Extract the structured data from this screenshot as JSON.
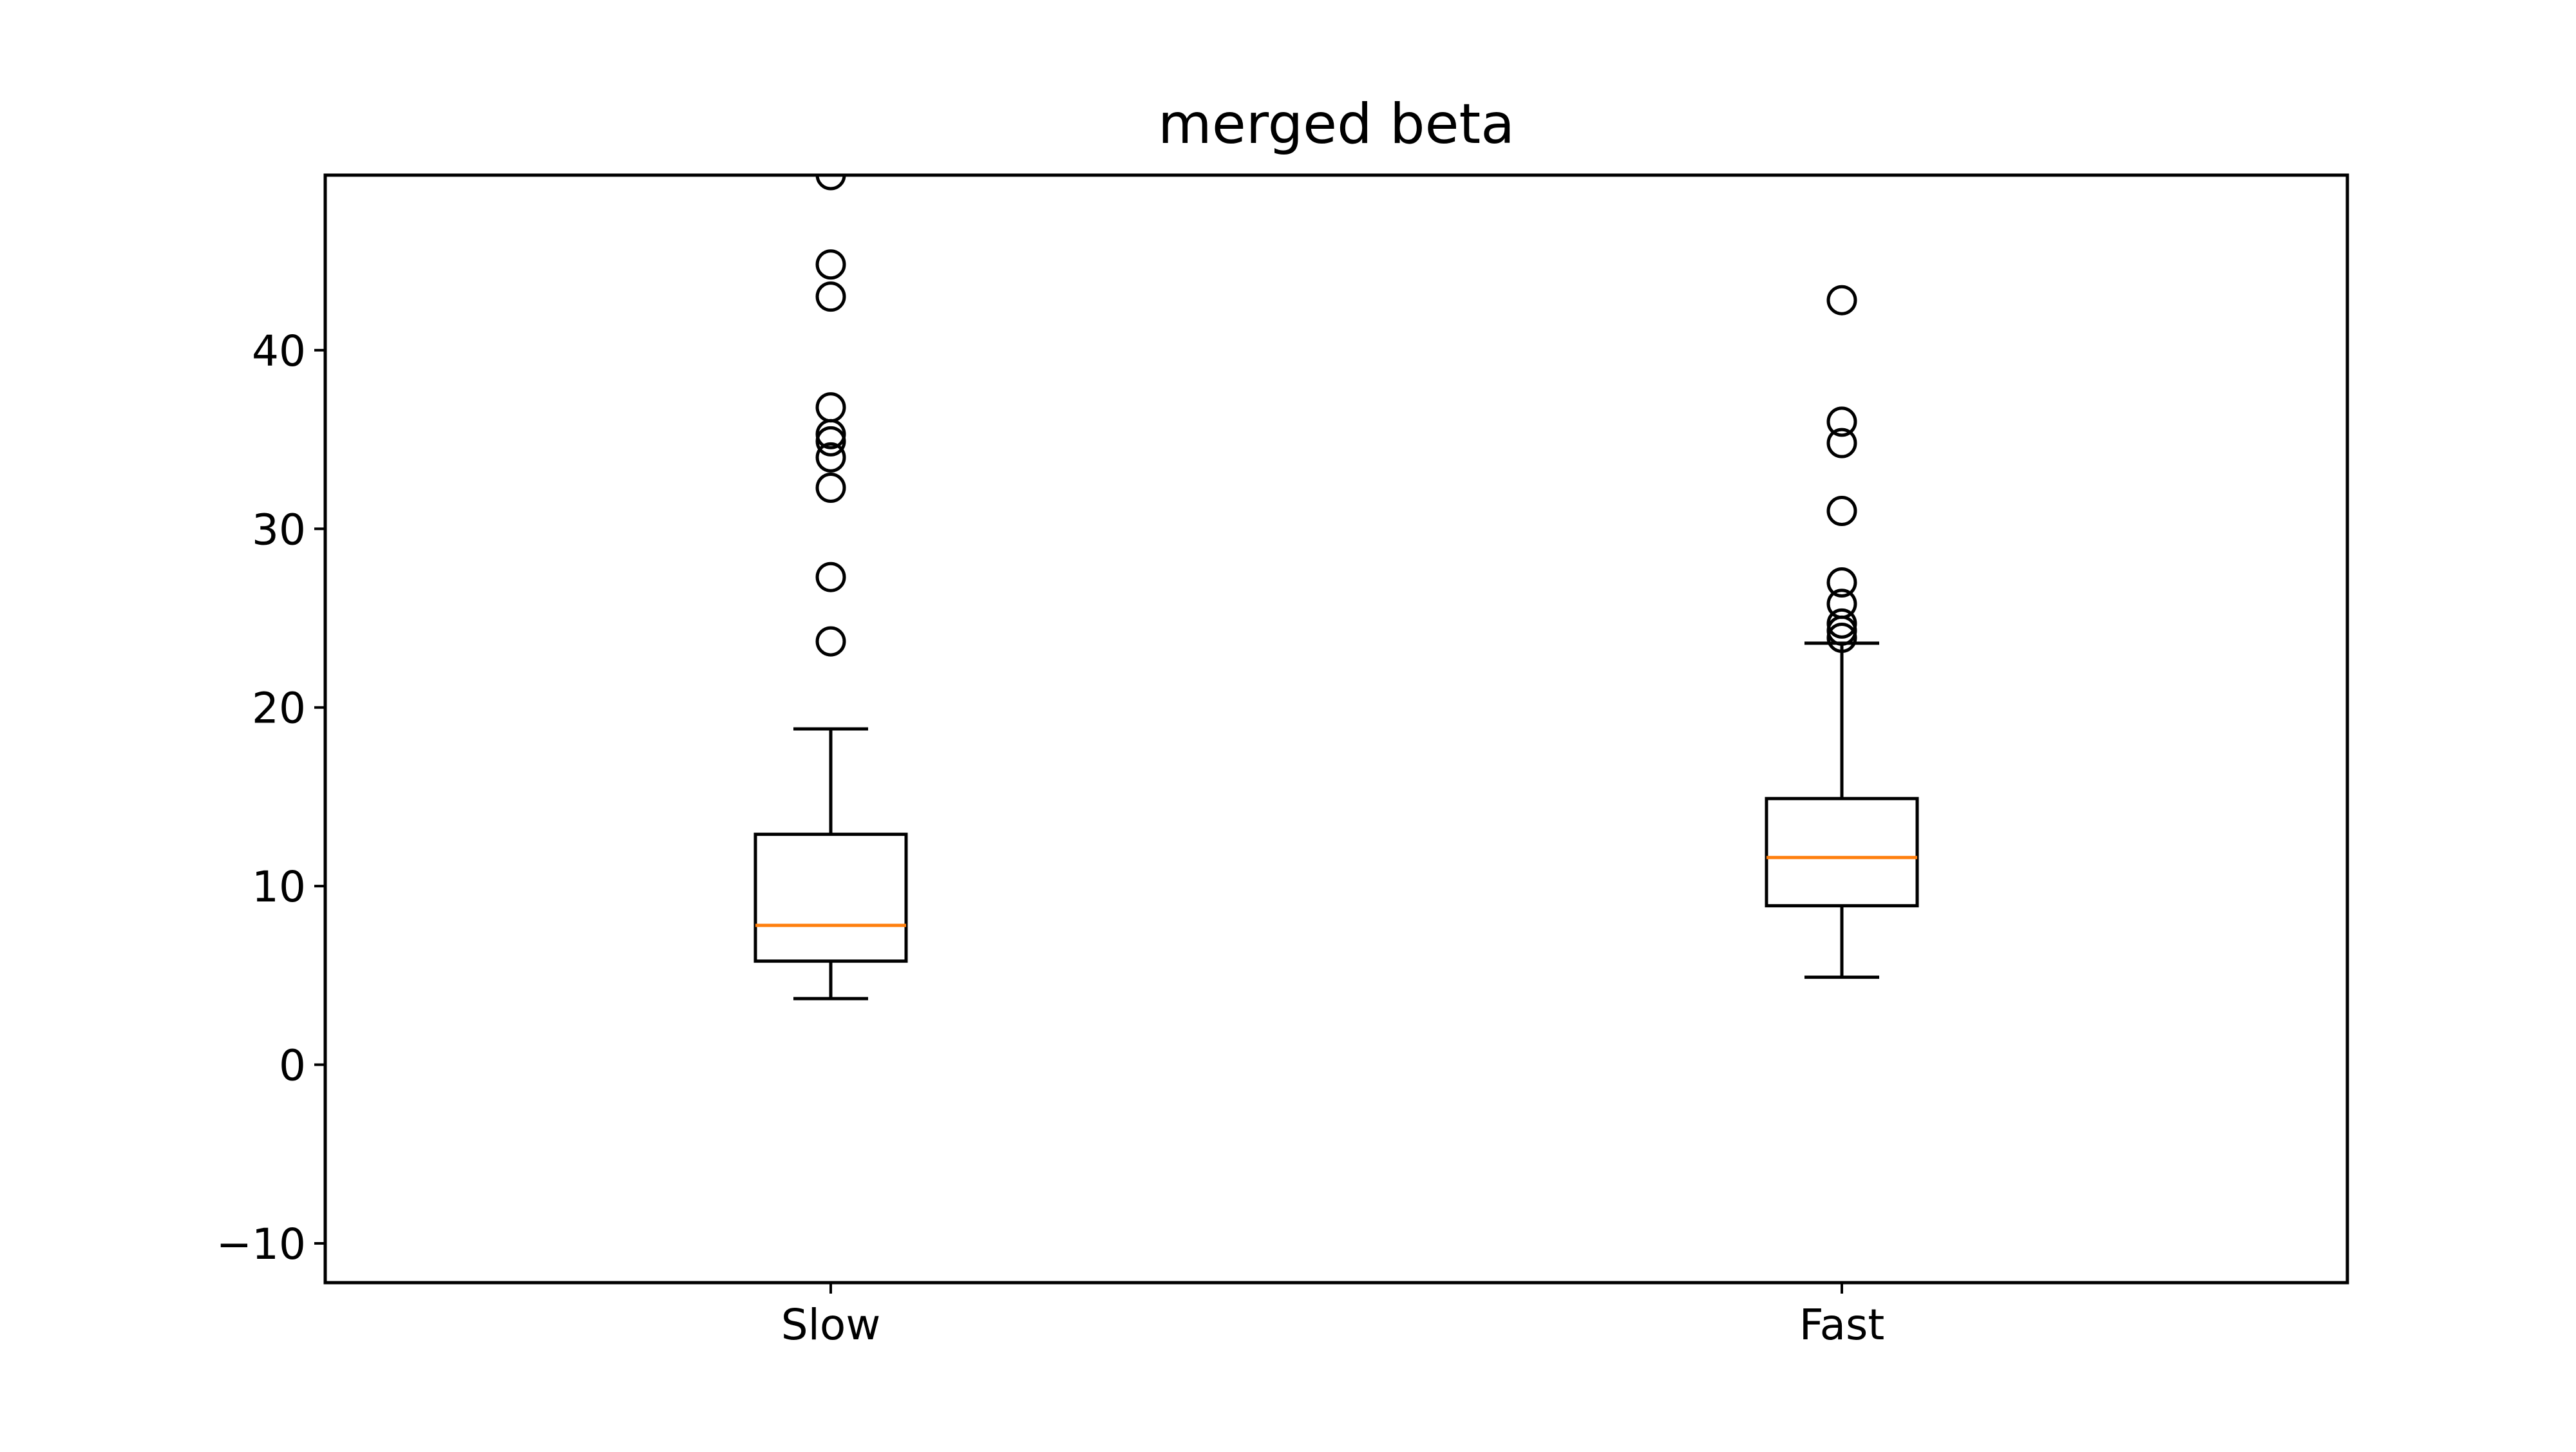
{
  "chart_data": {
    "type": "box",
    "title": "merged beta",
    "xlabel": "",
    "ylabel": "",
    "categories": [
      "Slow",
      "Fast"
    ],
    "ylim": [
      -12.2,
      49.8
    ],
    "yticks": [
      -10,
      0,
      10,
      20,
      30,
      40
    ],
    "ytick_labels": [
      "−10",
      "0",
      "10",
      "20",
      "30",
      "40"
    ],
    "grid": false,
    "legend": "none",
    "colors": {
      "box": "#000000",
      "median": "#ff7f0e",
      "flier": "#000000"
    },
    "boxes": [
      {
        "name": "Slow",
        "whisker_low": 3.7,
        "q1": 5.8,
        "median": 7.8,
        "q3": 12.9,
        "whisker_high": 18.8,
        "fliers": [
          23.7,
          27.3,
          32.3,
          34.0,
          34.9,
          35.3,
          36.8,
          43.0,
          44.8,
          49.8
        ]
      },
      {
        "name": "Fast",
        "whisker_low": 4.9,
        "q1": 8.9,
        "median": 11.6,
        "q3": 14.9,
        "whisker_high": 23.6,
        "fliers": [
          23.9,
          24.3,
          24.7,
          25.8,
          27.0,
          31.0,
          34.8,
          36.0,
          42.8
        ]
      }
    ]
  }
}
